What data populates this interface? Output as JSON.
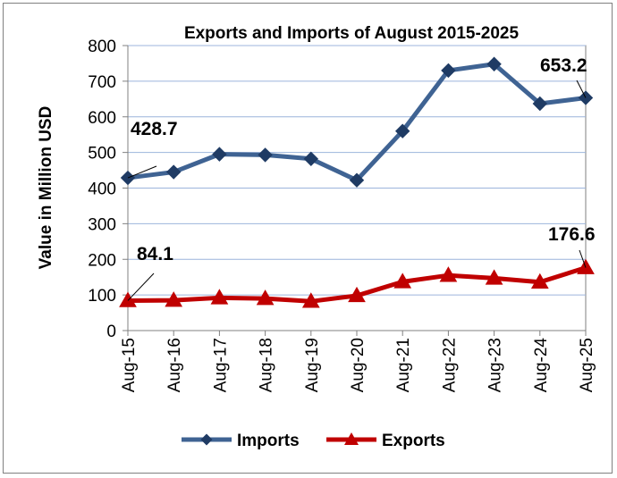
{
  "chart_data": {
    "type": "line",
    "title": "Exports and Imports of August 2015-2025",
    "xlabel": "",
    "ylabel": "Value in Million USD",
    "categories": [
      "Aug-15",
      "Aug-16",
      "Aug-17",
      "Aug-18",
      "Aug-19",
      "Aug-20",
      "Aug-21",
      "Aug-22",
      "Aug-23",
      "Aug-24",
      "Aug-25"
    ],
    "yticks": [
      "0",
      "100",
      "200",
      "300",
      "400",
      "500",
      "600",
      "700",
      "800"
    ],
    "ylim": [
      0,
      800
    ],
    "grid": true,
    "legend_position": "bottom",
    "series": [
      {
        "name": "Imports",
        "color": "#3f6393",
        "marker": "diamond",
        "values": [
          428.7,
          445,
          495,
          493,
          482,
          422,
          560,
          730,
          748,
          637,
          653.2
        ]
      },
      {
        "name": "Exports",
        "color": "#c00000",
        "marker": "triangle",
        "values": [
          84.1,
          85,
          92,
          90,
          82,
          98,
          137,
          155,
          147,
          136,
          176.6
        ]
      }
    ],
    "data_labels": [
      {
        "series": "Imports",
        "index": 0,
        "text": "428.7"
      },
      {
        "series": "Imports",
        "index": 10,
        "text": "653.2"
      },
      {
        "series": "Exports",
        "index": 0,
        "text": "84.1"
      },
      {
        "series": "Exports",
        "index": 10,
        "text": "176.6"
      }
    ]
  }
}
